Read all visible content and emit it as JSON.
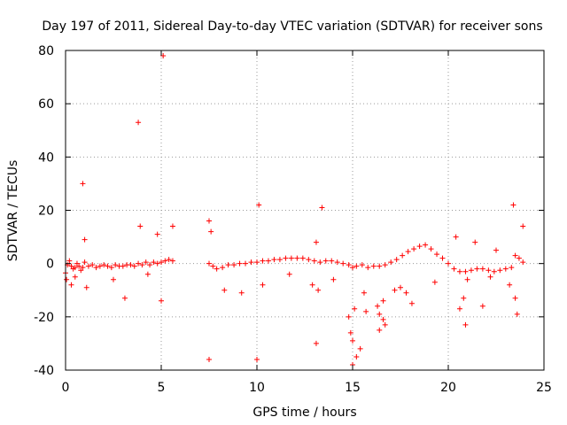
{
  "chart_data": {
    "type": "scatter",
    "title": "Day 197 of 2011, Sidereal Day-to-day VTEC variation (SDTVAR) for receiver sons",
    "xlabel": "GPS time / hours",
    "ylabel": "SDTVAR / TECUs",
    "xlim": [
      0,
      25
    ],
    "ylim": [
      -40,
      80
    ],
    "x_ticks": [
      0,
      5,
      10,
      15,
      20,
      25
    ],
    "y_ticks": [
      -40,
      -20,
      0,
      20,
      40,
      60,
      80
    ],
    "grid": true,
    "marker": "+",
    "color": "#ff0000",
    "series": [
      {
        "name": "SDTVAR",
        "data_gap_hours": [
          5.8,
          7.4
        ],
        "x": [
          0.0,
          0.1,
          0.2,
          0.3,
          0.4,
          0.5,
          0.6,
          0.7,
          0.8,
          0.9,
          1.0,
          1.2,
          1.4,
          1.6,
          1.8,
          2.0,
          2.2,
          2.4,
          2.6,
          2.8,
          3.0,
          3.2,
          3.4,
          3.6,
          3.8,
          4.0,
          4.2,
          4.4,
          4.6,
          4.8,
          5.0,
          5.2,
          5.4,
          5.6,
          7.5,
          7.7,
          7.9,
          8.2,
          8.5,
          8.8,
          9.1,
          9.4,
          9.7,
          10.0,
          10.3,
          10.6,
          10.9,
          11.2,
          11.5,
          11.8,
          12.1,
          12.4,
          12.7,
          13.0,
          13.3,
          13.6,
          13.9,
          14.2,
          14.5,
          14.8,
          15.0,
          15.2,
          15.5,
          15.8,
          16.1,
          16.4,
          16.7,
          17.0,
          17.3,
          17.6,
          17.9,
          18.2,
          18.5,
          18.8,
          19.1,
          19.4,
          19.7,
          20.0,
          20.3,
          20.6,
          20.9,
          21.2,
          21.5,
          21.8,
          22.1,
          22.4,
          22.7,
          23.0,
          23.3,
          23.5,
          23.7,
          23.9,
          0.9,
          1.0,
          3.8,
          3.9,
          4.8,
          5.1,
          5.6,
          7.5,
          7.6,
          10.1,
          10.3,
          13.1,
          13.2,
          13.4,
          14.8,
          14.9,
          15.0,
          15.1,
          16.4,
          16.6,
          17.2,
          17.8,
          18.1,
          20.4,
          20.6,
          20.8,
          20.9,
          21.4,
          21.8,
          22.5,
          23.4,
          23.5,
          23.9,
          7.5,
          10.0,
          13.1,
          15.0,
          15.2,
          15.4,
          16.4,
          16.7,
          23.6,
          0.05,
          0.3,
          0.5,
          1.1,
          2.5,
          3.1,
          4.3,
          5.0,
          8.3,
          9.2,
          11.7,
          12.9,
          14.0,
          15.6,
          17.5,
          19.3,
          21.0,
          22.2,
          23.2,
          15.7,
          16.3,
          16.6
        ],
        "y": [
          -3.5,
          -0.5,
          1.0,
          -1.0,
          -2.0,
          -1.5,
          0.0,
          -1.0,
          -2.5,
          -1.5,
          0.5,
          -1.0,
          -0.5,
          -1.5,
          -1.0,
          -0.5,
          -1.0,
          -1.5,
          -0.5,
          -1.0,
          -1.0,
          -0.5,
          -0.5,
          -1.0,
          0.0,
          -0.5,
          0.5,
          -0.5,
          0.5,
          0.0,
          0.5,
          1.0,
          1.5,
          1.0,
          0.0,
          -1.0,
          -2.0,
          -1.5,
          -0.5,
          -0.5,
          0.0,
          0.0,
          0.5,
          0.5,
          1.0,
          1.0,
          1.5,
          1.5,
          2.0,
          2.0,
          2.0,
          2.0,
          1.5,
          1.0,
          0.5,
          1.0,
          1.0,
          0.5,
          0.0,
          -0.5,
          -1.5,
          -1.0,
          -0.5,
          -1.5,
          -1.0,
          -1.0,
          -0.5,
          0.5,
          1.5,
          3.0,
          4.5,
          5.5,
          6.5,
          7.0,
          5.5,
          3.5,
          2.0,
          0.0,
          -2.0,
          -3.0,
          -3.0,
          -2.5,
          -2.0,
          -2.0,
          -2.5,
          -3.0,
          -2.5,
          -2.0,
          -1.5,
          3.0,
          2.0,
          0.5,
          30.0,
          9.0,
          53.0,
          14.0,
          11.0,
          78.0,
          14.0,
          16.0,
          12.0,
          22.0,
          -8.0,
          8.0,
          -10.0,
          21.0,
          -20.0,
          -26.0,
          -29.0,
          -17.0,
          -19.0,
          -14.0,
          -10.0,
          -11.0,
          -15.0,
          10.0,
          -17.0,
          -13.0,
          -23.0,
          8.0,
          -16.0,
          5.0,
          22.0,
          -13.0,
          14.0,
          -36.0,
          -36.0,
          -30.0,
          -38.0,
          -35.0,
          -32.0,
          -25.0,
          -23.0,
          -19.0,
          -6.0,
          -8.0,
          -5.0,
          -9.0,
          -6.0,
          -13.0,
          -4.0,
          -14.0,
          -10.0,
          -11.0,
          -4.0,
          -8.0,
          -6.0,
          -11.0,
          -9.0,
          -7.0,
          -6.0,
          -5.0,
          -8.0,
          -18.0,
          -16.0,
          -21.0
        ]
      }
    ]
  }
}
